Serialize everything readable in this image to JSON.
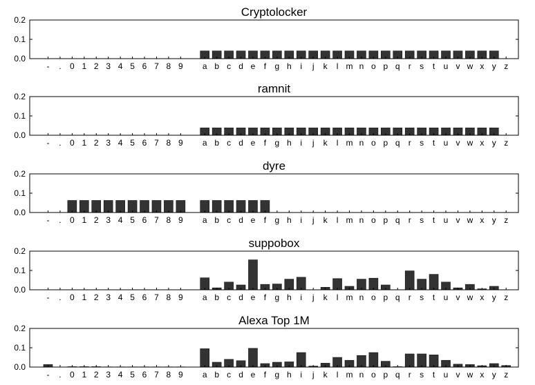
{
  "chart_data": [
    {
      "type": "bar",
      "title": "Cryptolocker",
      "categories": [
        "-",
        ".",
        "0",
        "1",
        "2",
        "3",
        "4",
        "5",
        "6",
        "7",
        "8",
        "9",
        "",
        "a",
        "b",
        "c",
        "d",
        "e",
        "f",
        "g",
        "h",
        "i",
        "j",
        "k",
        "l",
        "m",
        "n",
        "o",
        "p",
        "q",
        "r",
        "s",
        "t",
        "u",
        "v",
        "w",
        "x",
        "y",
        "z"
      ],
      "values": [
        0,
        0,
        0,
        0,
        0,
        0,
        0,
        0,
        0,
        0,
        0,
        0,
        0,
        0.04,
        0.04,
        0.04,
        0.04,
        0.04,
        0.04,
        0.04,
        0.04,
        0.04,
        0.04,
        0.04,
        0.04,
        0.04,
        0.04,
        0.04,
        0.04,
        0.04,
        0.04,
        0.04,
        0.04,
        0.04,
        0.04,
        0.04,
        0.04,
        0.04,
        0
      ],
      "ylim": [
        0,
        0.2
      ],
      "yticks": [
        "0.0",
        "0.1",
        "0.2"
      ],
      "bar_color": "#333333"
    },
    {
      "type": "bar",
      "title": "ramnit",
      "categories": [
        "-",
        ".",
        "0",
        "1",
        "2",
        "3",
        "4",
        "5",
        "6",
        "7",
        "8",
        "9",
        "",
        "a",
        "b",
        "c",
        "d",
        "e",
        "f",
        "g",
        "h",
        "i",
        "j",
        "k",
        "l",
        "m",
        "n",
        "o",
        "p",
        "q",
        "r",
        "s",
        "t",
        "u",
        "v",
        "w",
        "x",
        "y",
        "z"
      ],
      "values": [
        0,
        0,
        0,
        0,
        0,
        0,
        0,
        0,
        0,
        0,
        0,
        0,
        0,
        0.038,
        0.038,
        0.038,
        0.038,
        0.038,
        0.038,
        0.038,
        0.038,
        0.038,
        0.038,
        0.038,
        0.038,
        0.038,
        0.038,
        0.038,
        0.038,
        0.038,
        0.038,
        0.038,
        0.038,
        0.038,
        0.038,
        0.038,
        0.038,
        0.038,
        0
      ],
      "ylim": [
        0,
        0.2
      ],
      "yticks": [
        "0.0",
        "0.1",
        "0.2"
      ],
      "bar_color": "#333333"
    },
    {
      "type": "bar",
      "title": "dyre",
      "categories": [
        "-",
        ".",
        "0",
        "1",
        "2",
        "3",
        "4",
        "5",
        "6",
        "7",
        "8",
        "9",
        "",
        "a",
        "b",
        "c",
        "d",
        "e",
        "f",
        "g",
        "h",
        "i",
        "j",
        "k",
        "l",
        "m",
        "n",
        "o",
        "p",
        "q",
        "r",
        "s",
        "t",
        "u",
        "v",
        "w",
        "x",
        "y",
        "z"
      ],
      "values": [
        0,
        0,
        0.0625,
        0.0625,
        0.0625,
        0.0625,
        0.0625,
        0.0625,
        0.0625,
        0.0625,
        0.0625,
        0.0625,
        0,
        0.0625,
        0.0625,
        0.0625,
        0.0625,
        0.0625,
        0.0625,
        0,
        0,
        0,
        0,
        0,
        0,
        0,
        0,
        0,
        0,
        0,
        0,
        0,
        0,
        0,
        0,
        0,
        0,
        0,
        0
      ],
      "ylim": [
        0,
        0.2
      ],
      "yticks": [
        "0.0",
        "0.1",
        "0.2"
      ],
      "bar_color": "#333333"
    },
    {
      "type": "bar",
      "title": "suppobox",
      "categories": [
        "-",
        ".",
        "0",
        "1",
        "2",
        "3",
        "4",
        "5",
        "6",
        "7",
        "8",
        "9",
        "",
        "a",
        "b",
        "c",
        "d",
        "e",
        "f",
        "g",
        "h",
        "i",
        "j",
        "k",
        "l",
        "m",
        "n",
        "o",
        "p",
        "q",
        "r",
        "s",
        "t",
        "u",
        "v",
        "w",
        "x",
        "y",
        "z"
      ],
      "values": [
        0,
        0,
        0,
        0,
        0,
        0,
        0,
        0,
        0,
        0,
        0,
        0,
        0,
        0.062,
        0.01,
        0.04,
        0.025,
        0.155,
        0.028,
        0.03,
        0.055,
        0.065,
        0,
        0.013,
        0.058,
        0.018,
        0.055,
        0.06,
        0.025,
        0,
        0.098,
        0.055,
        0.08,
        0.04,
        0.01,
        0.028,
        0.005,
        0.018,
        0
      ],
      "ylim": [
        0,
        0.2
      ],
      "yticks": [
        "0.0",
        "0.1",
        "0.2"
      ],
      "bar_color": "#333333"
    },
    {
      "type": "bar",
      "title": "Alexa Top 1M",
      "categories": [
        "-",
        ".",
        "0",
        "1",
        "2",
        "3",
        "4",
        "5",
        "6",
        "7",
        "8",
        "9",
        "",
        "a",
        "b",
        "c",
        "d",
        "e",
        "f",
        "g",
        "h",
        "i",
        "j",
        "k",
        "l",
        "m",
        "n",
        "o",
        "p",
        "q",
        "r",
        "s",
        "t",
        "u",
        "v",
        "w",
        "x",
        "y",
        "z"
      ],
      "values": [
        0.013,
        0,
        0.002,
        0.002,
        0.002,
        0.001,
        0.001,
        0.001,
        0.001,
        0.001,
        0.001,
        0.001,
        0,
        0.095,
        0.025,
        0.04,
        0.033,
        0.097,
        0.018,
        0.025,
        0.027,
        0.075,
        0.005,
        0.02,
        0.05,
        0.035,
        0.06,
        0.075,
        0.03,
        0.002,
        0.068,
        0.068,
        0.063,
        0.035,
        0.015,
        0.013,
        0.007,
        0.018,
        0.008
      ],
      "ylim": [
        0,
        0.2
      ],
      "yticks": [
        "0.0",
        "0.1",
        "0.2"
      ],
      "bar_color": "#333333"
    }
  ]
}
